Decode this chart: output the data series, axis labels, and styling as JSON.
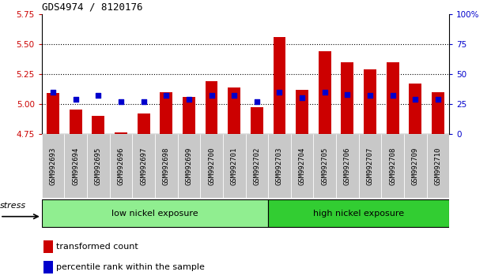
{
  "title": "GDS4974 / 8120176",
  "samples": [
    "GSM992693",
    "GSM992694",
    "GSM992695",
    "GSM992696",
    "GSM992697",
    "GSM992698",
    "GSM992699",
    "GSM992700",
    "GSM992701",
    "GSM992702",
    "GSM992703",
    "GSM992704",
    "GSM992705",
    "GSM992706",
    "GSM992707",
    "GSM992708",
    "GSM992709",
    "GSM992710"
  ],
  "red_values": [
    5.09,
    4.95,
    4.9,
    4.76,
    4.92,
    5.1,
    5.06,
    5.19,
    5.14,
    4.97,
    5.56,
    5.12,
    5.44,
    5.35,
    5.29,
    5.35,
    5.17,
    5.1
  ],
  "blue_values_pct": [
    35,
    29,
    32,
    27,
    27,
    32,
    29,
    32,
    32,
    27,
    35,
    30,
    35,
    33,
    32,
    32,
    29,
    29
  ],
  "ymin": 4.75,
  "ymax": 5.75,
  "y2min": 0,
  "y2max": 100,
  "yticks": [
    4.75,
    5.0,
    5.25,
    5.5,
    5.75
  ],
  "y2ticks": [
    0,
    25,
    50,
    75,
    100
  ],
  "bar_color": "#cc0000",
  "dot_color": "#0000cc",
  "bar_width": 0.55,
  "low_nickel_count": 10,
  "high_nickel_count": 8,
  "group_label_low": "low nickel exposure",
  "group_label_high": "high nickel exposure",
  "stress_label": "stress",
  "legend_red": "transformed count",
  "legend_blue": "percentile rank within the sample",
  "bg_plot": "#ffffff",
  "bg_xticklabel": "#c8c8c8",
  "bg_group_low": "#90ee90",
  "bg_group_high": "#32cd32",
  "fig_bg": "#ffffff"
}
